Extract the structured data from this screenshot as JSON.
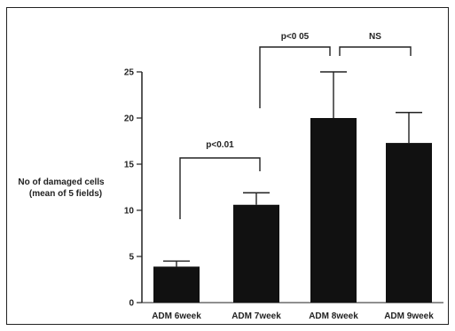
{
  "chart_data": {
    "type": "bar",
    "categories": [
      "ADM 6week",
      "ADM 7week",
      "ADM 8week",
      "ADM 9week"
    ],
    "values": [
      3.9,
      10.6,
      20.0,
      17.3
    ],
    "errors": [
      0.6,
      1.3,
      5.0,
      3.3
    ],
    "ylabel_line1": "No  of damaged cells",
    "ylabel_line2": "(mean of 5 fields)",
    "ylim": [
      0,
      25
    ],
    "yticks": [
      "0",
      "5",
      "10",
      "15",
      "20",
      "25"
    ],
    "bar_color": "#111111",
    "annotations": [
      {
        "label": "p<0.01",
        "from": 0,
        "to": 1
      },
      {
        "label": "p<0 05",
        "from": 1,
        "to": 2
      },
      {
        "label": "NS",
        "from": 2,
        "to": 3
      }
    ]
  }
}
